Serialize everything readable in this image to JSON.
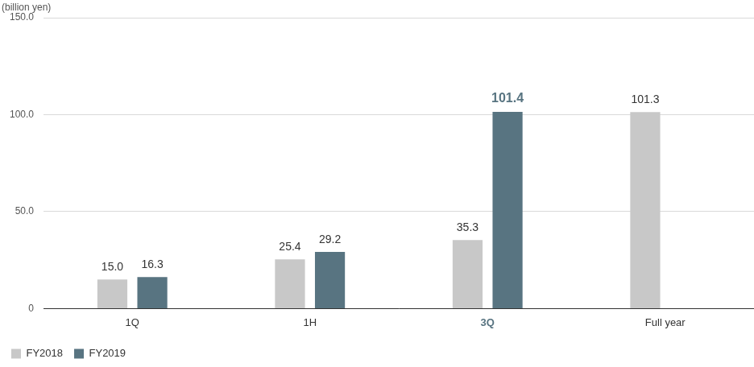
{
  "chart_data": {
    "type": "bar",
    "y_label": "(billion yen)",
    "categories": [
      "1Q",
      "1H",
      "3Q",
      "Full year"
    ],
    "series": [
      {
        "name": "FY2018",
        "color": "#c8c8c8",
        "values": [
          15.0,
          25.4,
          35.3,
          101.3
        ],
        "value_labels": [
          "15.0",
          "25.4",
          "35.3",
          "101.3"
        ]
      },
      {
        "name": "FY2019",
        "color": "#587481",
        "values": [
          16.3,
          29.2,
          101.4,
          null
        ],
        "value_labels": [
          "16.3",
          "29.2",
          "101.4",
          null
        ]
      }
    ],
    "ylim": [
      0,
      150
    ],
    "yticks": [
      0,
      {
        "value": 50,
        "label": "50.0"
      },
      {
        "value": 100,
        "label": "100.0"
      },
      {
        "value": 150,
        "label": "150.0"
      }
    ],
    "grid": true,
    "legend": "bottom-left",
    "data_labels": true
  }
}
